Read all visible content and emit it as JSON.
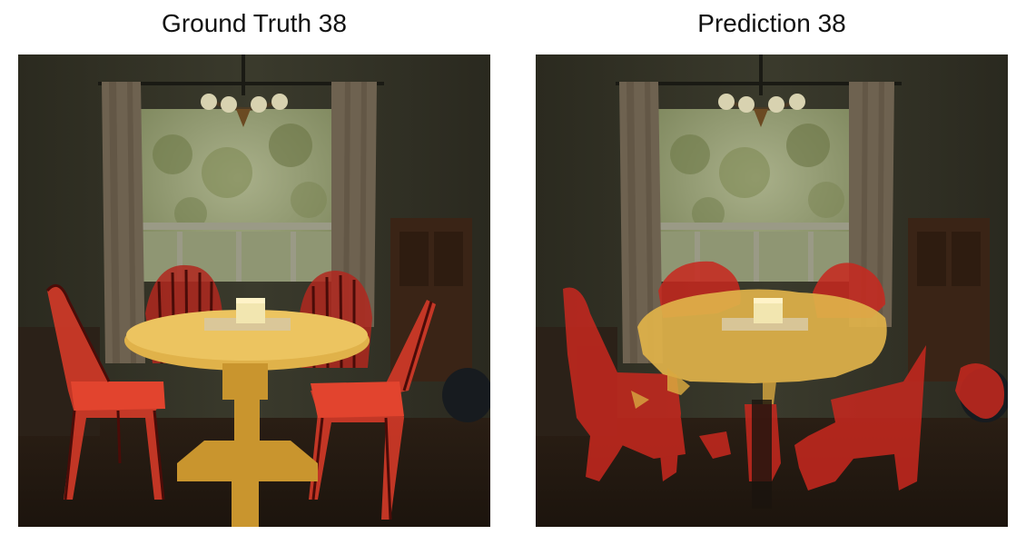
{
  "figure": {
    "left_title": "Ground Truth 38",
    "right_title": "Prediction 38"
  },
  "colors": {
    "chair_mask": "#e0281e",
    "table_mask": "#e8b41e",
    "background": "#ffffff"
  },
  "scene": {
    "description_icon": "dining-room-photo",
    "mask_classes": [
      "chair",
      "table"
    ]
  }
}
